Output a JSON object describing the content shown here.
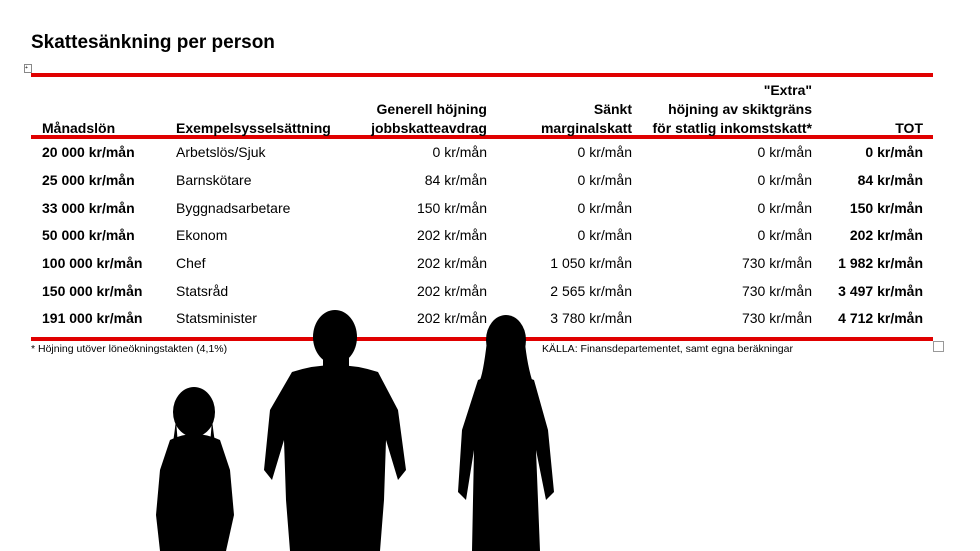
{
  "title": "Skattesänkning per person",
  "headers": {
    "monthly": "Månadslön",
    "job": "Exempelsysselsättning",
    "deduction_1": "Generell höjning",
    "deduction_2": "jobbskatteavdrag",
    "marginal_1": "Sänkt",
    "marginal_2": "marginalskatt",
    "extra_1": "\"Extra\"",
    "extra_2": "höjning av skiktgräns",
    "extra_3": "för statlig inkomstskatt*",
    "total": "TOT"
  },
  "rows": [
    {
      "salary": "20 000 kr/mån",
      "job": "Arbetslös/Sjuk",
      "deduction": "0 kr/mån",
      "marginal": "0 kr/mån",
      "extra": "0 kr/mån",
      "total": "0 kr/mån"
    },
    {
      "salary": "25 000 kr/mån",
      "job": "Barnskötare",
      "deduction": "84 kr/mån",
      "marginal": "0 kr/mån",
      "extra": "0 kr/mån",
      "total": "84 kr/mån"
    },
    {
      "salary": "33 000 kr/mån",
      "job": "Byggnadsarbetare",
      "deduction": "150 kr/mån",
      "marginal": "0 kr/mån",
      "extra": "0 kr/mån",
      "total": "150 kr/mån"
    },
    {
      "salary": "50 000 kr/mån",
      "job": "Ekonom",
      "deduction": "202 kr/mån",
      "marginal": "0 kr/mån",
      "extra": "0 kr/mån",
      "total": "202 kr/mån"
    },
    {
      "salary": "100 000 kr/mån",
      "job": "Chef",
      "deduction": "202 kr/mån",
      "marginal": "1 050 kr/mån",
      "extra": "730 kr/mån",
      "total": "1 982 kr/mån"
    },
    {
      "salary": "150 000 kr/mån",
      "job": "Statsråd",
      "deduction": "202 kr/mån",
      "marginal": "2 565 kr/mån",
      "extra": "730 kr/mån",
      "total": "3 497 kr/mån"
    },
    {
      "salary": "191 000 kr/mån",
      "job": "Statsminister",
      "deduction": "202 kr/mån",
      "marginal": "3 780 kr/mån",
      "extra": "730 kr/mån",
      "total": "4 712 kr/mån"
    }
  ],
  "footnote": "* Höjning utöver löneökningstakten (4,1%)",
  "source": "KÄLLA: Finansdepartementet, samt egna beräkningar",
  "accent_color": "#e00000"
}
